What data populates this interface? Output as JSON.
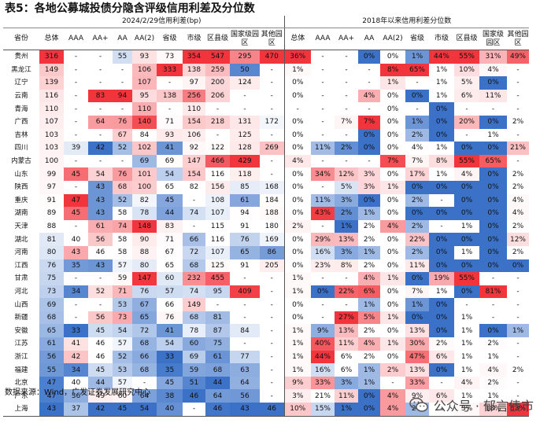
{
  "title": "表5：各地公募城投债分隐含评级信用利差及分位数",
  "group_left": "2024/2/29信用利差(bp)",
  "group_right": "2018年以来信用利差分位数",
  "header_province": "省份",
  "columns": [
    "总体",
    "AAA",
    "AA+",
    "AA",
    "AA(2)",
    "省级",
    "市级",
    "区县级",
    "国家级园区",
    "其他园区"
  ],
  "rows": [
    {
      "province": "贵州",
      "spread": [
        "316",
        "-",
        "-",
        "55",
        "93",
        "73",
        "354",
        "547",
        "295",
        "470"
      ],
      "pct": [
        "36%",
        "-",
        "-",
        "0%",
        "0%",
        "1%",
        "44%",
        "55%",
        "31%",
        "49%"
      ]
    },
    {
      "province": "黑龙江",
      "spread": [
        "149",
        "-",
        "-",
        "-",
        "106",
        "333",
        "138",
        "259",
        "50",
        "-"
      ],
      "pct": [
        "1%",
        "-",
        "-",
        "-",
        "8%",
        "65%",
        "1%",
        "10%",
        "4%",
        "-"
      ]
    },
    {
      "province": "辽宁",
      "spread": [
        "139",
        "-",
        "-",
        "-",
        "107",
        "-",
        "97",
        "200",
        "124",
        "-"
      ],
      "pct": [
        "0%",
        "-",
        "-",
        "-",
        "1%",
        "-",
        "1%",
        "5%",
        "0%",
        "-"
      ]
    },
    {
      "province": "云南",
      "spread": [
        "116",
        "-",
        "83",
        "94",
        "95",
        "138",
        "256",
        "206",
        "-",
        "-"
      ],
      "pct": [
        "0%",
        "-",
        "-",
        "4%",
        "0%",
        "0%",
        "1%",
        "6%",
        "11%",
        "-"
      ]
    },
    {
      "province": "青海",
      "spread": [
        "110",
        "-",
        "-",
        "-",
        "110",
        "-",
        "110",
        "-",
        "-",
        "-"
      ],
      "pct": [
        "-",
        "-",
        "-",
        "-",
        "0%",
        "-",
        "0%",
        "-",
        "-",
        "-"
      ]
    },
    {
      "province": "广西",
      "spread": [
        "107",
        "-",
        "64",
        "76",
        "140",
        "71",
        "154",
        "218",
        "131",
        "172"
      ],
      "pct": [
        "0%",
        "-",
        "7%",
        "7%",
        "0%",
        "1%",
        "0%",
        "20%",
        "0%",
        "2%"
      ]
    },
    {
      "province": "吉林",
      "spread": [
        "103",
        "-",
        "-",
        "67",
        "84",
        "93",
        "106",
        "-",
        "125",
        "-"
      ],
      "pct": [
        "0%",
        "-",
        "-",
        "0%",
        "0%",
        "2%",
        "0%",
        "-",
        "1%",
        "-"
      ]
    },
    {
      "province": "四川",
      "spread": [
        "103",
        "39",
        "42",
        "52",
        "102",
        "41",
        "92",
        "122",
        "128",
        "269"
      ],
      "pct": [
        "0%",
        "11%",
        "2%",
        "0%",
        "0%",
        "4%",
        "1%",
        "0%",
        "0%",
        "21%"
      ]
    },
    {
      "province": "内蒙古",
      "spread": [
        "100",
        "-",
        "-",
        "-",
        "69",
        "69",
        "147",
        "466",
        "429",
        "-"
      ],
      "pct": [
        "4%",
        "-",
        "-",
        "-",
        "7%",
        "7%",
        "8%",
        "55%",
        "65%",
        "-"
      ]
    },
    {
      "province": "山东",
      "spread": [
        "99",
        "45",
        "54",
        "76",
        "101",
        "54",
        "154",
        "116",
        "118",
        "-"
      ],
      "pct": [
        "0%",
        "34%",
        "12%",
        "3%",
        "0%",
        "17%",
        "1%",
        "4%",
        "0%",
        "2%"
      ]
    },
    {
      "province": "陕西",
      "spread": [
        "97",
        "-",
        "43",
        "68",
        "100",
        "65",
        "82",
        "156",
        "85",
        "168"
      ],
      "pct": [
        "0%",
        "-",
        "5%",
        "3%",
        "1%",
        "0%",
        "0%",
        "0%",
        "0%",
        "2%"
      ]
    },
    {
      "province": "重庆",
      "spread": [
        "91",
        "47",
        "43",
        "52",
        "82",
        "45",
        "-",
        "108",
        "61",
        "184"
      ],
      "pct": [
        "0%",
        "11%",
        "3%",
        "0%",
        "0%",
        "2%",
        "-",
        "0%",
        "0%",
        "4%"
      ]
    },
    {
      "province": "湖南",
      "spread": [
        "89",
        "45",
        "43",
        "58",
        "78",
        "44",
        "74",
        "107",
        "94",
        "188"
      ],
      "pct": [
        "0%",
        "43%",
        "2%",
        "1%",
        "0%",
        "0%",
        "0%",
        "0%",
        "0%",
        "4%"
      ]
    },
    {
      "province": "天津",
      "spread": [
        "88",
        "-",
        "61",
        "74",
        "148",
        "83",
        "-",
        "115",
        "91",
        "180"
      ],
      "pct": [
        "2%",
        "-",
        "1%",
        "2%",
        "4%",
        "2%",
        "-",
        "1%",
        "0%",
        "2%"
      ]
    },
    {
      "province": "湖北",
      "spread": [
        "81",
        "40",
        "56",
        "58",
        "90",
        "71",
        "66",
        "116",
        "76",
        "169"
      ],
      "pct": [
        "0%",
        "29%",
        "13%",
        "2%",
        "0%",
        "22%",
        "0%",
        "0%",
        "0%",
        "12%"
      ]
    },
    {
      "province": "河南",
      "spread": [
        "80",
        "43",
        "46",
        "58",
        "88",
        "67",
        "72",
        "107",
        "65",
        "86"
      ],
      "pct": [
        "0%",
        "16%",
        "3%",
        "1%",
        "0%",
        "2%",
        "0%",
        "1%",
        "0%",
        "2%"
      ]
    },
    {
      "province": "江西",
      "spread": [
        "76",
        "35",
        "43",
        "57",
        "80",
        "65",
        "68",
        "125",
        "91",
        "205"
      ],
      "pct": [
        "0%",
        "23%",
        "8%",
        "2%",
        "0%",
        "11%",
        "0%",
        "0%",
        "0%",
        "0%"
      ]
    },
    {
      "province": "甘肃",
      "spread": [
        "75",
        "-",
        "-",
        "59",
        "147",
        "60",
        "232",
        "455",
        "-",
        "-"
      ],
      "pct": [
        "1%",
        "-",
        "-",
        "4%",
        "1%",
        "0%",
        "19%",
        "55%",
        "-",
        "-"
      ]
    },
    {
      "province": "河北",
      "spread": [
        "73",
        "34",
        "52",
        "71",
        "76",
        "57",
        "74",
        "95",
        "409",
        "-"
      ],
      "pct": [
        "1%",
        "0%",
        "22%",
        "6%",
        "0%",
        "7%",
        "1%",
        "0%",
        "81%",
        "-"
      ]
    },
    {
      "province": "山西",
      "spread": [
        "69",
        "-",
        "-",
        "53",
        "67",
        "66",
        "149",
        "-",
        "-",
        "-"
      ],
      "pct": [
        "0%",
        "-",
        "-",
        "1%",
        "0%",
        "1%",
        "0%",
        "-",
        "-",
        "-"
      ]
    },
    {
      "province": "新疆",
      "spread": [
        "68",
        "-",
        "56",
        "73",
        "65",
        "76",
        "68",
        "81",
        "-",
        "-"
      ],
      "pct": [
        "0%",
        "-",
        "27%",
        "5%",
        "1%",
        "0%",
        "0%",
        "1%",
        "-",
        "-"
      ]
    },
    {
      "province": "安徽",
      "spread": [
        "65",
        "33",
        "45",
        "54",
        "72",
        "41",
        "78",
        "87",
        "84",
        "-"
      ],
      "pct": [
        "1%",
        "9%",
        "13%",
        "2%",
        "0%",
        "13%",
        "0%",
        "1%",
        "0%",
        "1%"
      ]
    },
    {
      "province": "江苏",
      "spread": [
        "61",
        "41",
        "46",
        "57",
        "68",
        "54",
        "60",
        "75",
        "-",
        "-"
      ],
      "pct": [
        "1%",
        "40%",
        "11%",
        "4%",
        "1%",
        "30%",
        "2%",
        "1%",
        "2%",
        "-"
      ]
    },
    {
      "province": "浙江",
      "spread": [
        "56",
        "42",
        "46",
        "52",
        "66",
        "33",
        "69",
        "61",
        "77",
        "-"
      ],
      "pct": [
        "1%",
        "44%",
        "6%",
        "2%",
        "0%",
        "47%",
        "6%",
        "1%",
        "1%",
        "-"
      ]
    },
    {
      "province": "福建",
      "spread": [
        "55",
        "34",
        "45",
        "53",
        "68",
        "35",
        "59",
        "68",
        "63",
        "-"
      ],
      "pct": [
        "1%",
        "16%",
        "6%",
        "1%",
        "2%",
        "13%",
        "0%",
        "1%",
        "4%",
        "2%"
      ]
    },
    {
      "province": "北京",
      "spread": [
        "47",
        "40",
        "44",
        "57",
        "-",
        "45",
        "51",
        "44",
        "64",
        "-"
      ],
      "pct": [
        "9%",
        "33%",
        "3%",
        "1%",
        "-",
        "33%",
        "-",
        "4%",
        "2%",
        "-"
      ]
    },
    {
      "province": "广东",
      "spread": [
        "47",
        "36",
        "49",
        "60",
        "64",
        "38",
        "46",
        "64",
        "56",
        "-"
      ],
      "pct": [
        "3%",
        "21%",
        "11%",
        "0%",
        "4%",
        "9%",
        "6%",
        "1%",
        "1%",
        "-"
      ]
    },
    {
      "province": "上海",
      "spread": [
        "43",
        "37",
        "42",
        "45",
        "54",
        "40",
        "-",
        "46",
        "43",
        "46"
      ],
      "pct": [
        "10%",
        "15%",
        "1%",
        "0%",
        "4%",
        "2%",
        "-",
        "3%",
        "18%",
        "63%"
      ]
    }
  ],
  "source": "数据来源：Wind，广发证券发展研究中心",
  "watermark": "公众号 · 郁言债市",
  "watermark_icon": "wechat-icon",
  "colors": {
    "red": "#f2343c",
    "blue": "#3b72c8",
    "white": "#ffffff"
  }
}
